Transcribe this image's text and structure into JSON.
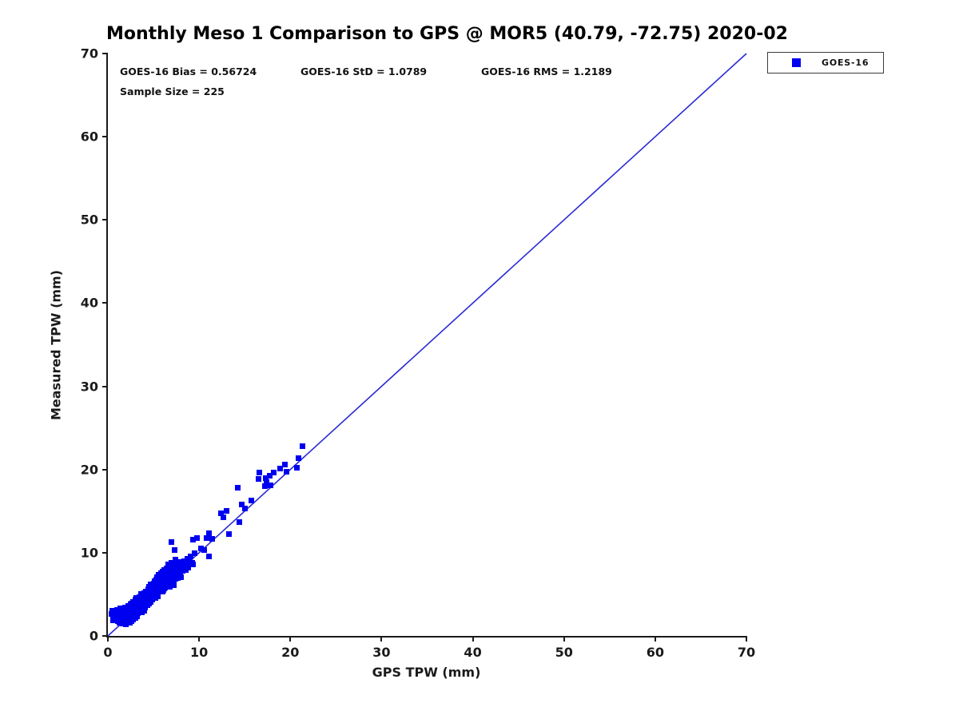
{
  "title": "Monthly Meso 1 Comparison to GPS @ MOR5 (40.79, -72.75) 2020-02",
  "stats": {
    "bias": "GOES-16 Bias = 0.56724",
    "std": "GOES-16 StD = 1.0789",
    "rms": "GOES-16 RMS = 1.2189",
    "sample_size": "Sample Size = 225"
  },
  "legend": {
    "entries": [
      {
        "label": "GOES-16",
        "marker_color": "#0000f0",
        "marker": "square"
      }
    ]
  },
  "colors": {
    "marker": "#0000f0",
    "reference_line": "#2a2ad4",
    "axis": "#1a1a1a",
    "background": "#ffffff"
  },
  "chart_data": {
    "type": "scatter",
    "title": "Monthly Meso 1 Comparison to GPS @ MOR5 (40.79, -72.75) 2020-02",
    "xlabel": "GPS TPW (mm)",
    "ylabel": "Measured TPW (mm)",
    "xlim": [
      0,
      70
    ],
    "ylim": [
      0,
      70
    ],
    "xticks": [
      0,
      10,
      20,
      30,
      40,
      50,
      60,
      70
    ],
    "yticks": [
      0,
      10,
      20,
      30,
      40,
      50,
      60,
      70
    ],
    "grid": false,
    "legend_position": "outside-top-right",
    "annotations": [
      "GOES-16 Bias = 0.56724",
      "GOES-16 StD = 1.0789",
      "GOES-16 RMS = 1.2189",
      "Sample Size = 225"
    ],
    "reference_line": {
      "meaning": "1:1 line",
      "from": [
        0,
        0
      ],
      "to": [
        70,
        70
      ]
    },
    "series": [
      {
        "name": "GOES-16",
        "marker": "square",
        "color": "#0000f0",
        "sample_size": 225,
        "points": [
          [
            0.4,
            2.6
          ],
          [
            0.5,
            3.0
          ],
          [
            0.6,
            1.9
          ],
          [
            0.6,
            2.3
          ],
          [
            0.8,
            2.4
          ],
          [
            0.9,
            2.0
          ],
          [
            1.0,
            2.6
          ],
          [
            1.0,
            3.1
          ],
          [
            1.1,
            1.8
          ],
          [
            1.2,
            2.2
          ],
          [
            1.2,
            2.9
          ],
          [
            1.3,
            1.6
          ],
          [
            1.4,
            2.5
          ],
          [
            1.4,
            3.3
          ],
          [
            1.5,
            2.0
          ],
          [
            1.6,
            2.8
          ],
          [
            1.6,
            1.5
          ],
          [
            1.7,
            2.2
          ],
          [
            1.7,
            3.0
          ],
          [
            1.8,
            1.8
          ],
          [
            1.8,
            2.6
          ],
          [
            1.9,
            3.4
          ],
          [
            1.9,
            2.1
          ],
          [
            2.0,
            1.4
          ],
          [
            2.0,
            2.4
          ],
          [
            2.0,
            3.1
          ],
          [
            2.1,
            2.8
          ],
          [
            2.1,
            1.9
          ],
          [
            2.2,
            2.3
          ],
          [
            2.2,
            3.6
          ],
          [
            2.3,
            2.0
          ],
          [
            2.3,
            2.9
          ],
          [
            2.4,
            1.6
          ],
          [
            2.4,
            3.3
          ],
          [
            2.5,
            2.2
          ],
          [
            2.5,
            3.0
          ],
          [
            2.5,
            3.8
          ],
          [
            2.6,
            2.6
          ],
          [
            2.6,
            1.8
          ],
          [
            2.7,
            3.4
          ],
          [
            2.7,
            2.3
          ],
          [
            2.8,
            4.1
          ],
          [
            2.8,
            2.9
          ],
          [
            2.8,
            2.0
          ],
          [
            2.9,
            3.2
          ],
          [
            2.9,
            2.5
          ],
          [
            3.0,
            3.8
          ],
          [
            3.0,
            2.2
          ],
          [
            3.0,
            4.4
          ],
          [
            3.1,
            2.8
          ],
          [
            3.1,
            3.5
          ],
          [
            3.2,
            2.4
          ],
          [
            3.2,
            4.0
          ],
          [
            3.2,
            3.1
          ],
          [
            3.3,
            3.6
          ],
          [
            3.3,
            2.7
          ],
          [
            3.4,
            4.2
          ],
          [
            3.4,
            3.1
          ],
          [
            3.5,
            4.7
          ],
          [
            3.5,
            2.9
          ],
          [
            3.5,
            3.9
          ],
          [
            3.6,
            3.3
          ],
          [
            3.6,
            4.4
          ],
          [
            3.7,
            2.8
          ],
          [
            3.7,
            3.7
          ],
          [
            3.8,
            4.9
          ],
          [
            3.8,
            3.2
          ],
          [
            3.8,
            4.1
          ],
          [
            3.9,
            3.5
          ],
          [
            3.9,
            4.5
          ],
          [
            4.0,
            3.0
          ],
          [
            4.0,
            5.1
          ],
          [
            4.0,
            4.0
          ],
          [
            3.6,
            5.0
          ],
          [
            4.1,
            4.4
          ],
          [
            4.1,
            3.4
          ],
          [
            4.2,
            5.3
          ],
          [
            4.2,
            4.0
          ],
          [
            4.3,
            4.8
          ],
          [
            4.3,
            3.7
          ],
          [
            4.4,
            5.6
          ],
          [
            4.4,
            4.3
          ],
          [
            4.5,
            3.9
          ],
          [
            4.5,
            5.0
          ],
          [
            4.6,
            4.6
          ],
          [
            4.6,
            5.8
          ],
          [
            4.7,
            4.1
          ],
          [
            4.7,
            5.3
          ],
          [
            4.8,
            4.8
          ],
          [
            4.8,
            6.0
          ],
          [
            4.2,
            4.6
          ],
          [
            4.5,
            5.9
          ],
          [
            4.7,
            6.2
          ],
          [
            4.4,
            5.1
          ],
          [
            4.9,
            5.5
          ],
          [
            4.9,
            4.4
          ],
          [
            5.0,
            6.3
          ],
          [
            5.0,
            5.0
          ],
          [
            5.0,
            5.8
          ],
          [
            5.1,
            4.7
          ],
          [
            5.1,
            6.6
          ],
          [
            5.2,
            5.3
          ],
          [
            5.2,
            6.0
          ],
          [
            5.3,
            4.9
          ],
          [
            5.3,
            6.8
          ],
          [
            5.3,
            5.6
          ],
          [
            5.4,
            5.1
          ],
          [
            5.4,
            6.3
          ],
          [
            5.5,
            5.9
          ],
          [
            5.5,
            7.0
          ],
          [
            5.5,
            4.8
          ],
          [
            5.6,
            5.4
          ],
          [
            5.6,
            6.6
          ],
          [
            5.6,
            7.3
          ],
          [
            5.2,
            4.6
          ],
          [
            5.4,
            7.1
          ],
          [
            5.7,
            6.0
          ],
          [
            5.7,
            6.9
          ],
          [
            5.8,
            5.5
          ],
          [
            5.8,
            6.4
          ],
          [
            5.8,
            7.5
          ],
          [
            5.9,
            5.9
          ],
          [
            5.9,
            7.1
          ],
          [
            6.0,
            6.6
          ],
          [
            6.0,
            5.3
          ],
          [
            6.0,
            7.7
          ],
          [
            6.1,
            6.2
          ],
          [
            6.1,
            7.3
          ],
          [
            6.2,
            5.7
          ],
          [
            6.2,
            6.8
          ],
          [
            6.2,
            7.9
          ],
          [
            6.3,
            6.4
          ],
          [
            6.3,
            7.5
          ],
          [
            6.4,
            6.0
          ],
          [
            6.4,
            7.0
          ],
          [
            6.4,
            8.1
          ],
          [
            6.1,
            5.5
          ],
          [
            6.3,
            5.8
          ],
          [
            6.5,
            6.7
          ],
          [
            6.5,
            7.7
          ],
          [
            6.6,
            6.2
          ],
          [
            6.6,
            7.3
          ],
          [
            6.7,
            8.3
          ],
          [
            6.7,
            6.9
          ],
          [
            6.8,
            7.5
          ],
          [
            6.8,
            6.4
          ],
          [
            6.9,
            8.0
          ],
          [
            6.9,
            7.1
          ],
          [
            7.0,
            6.6
          ],
          [
            7.0,
            7.7
          ],
          [
            7.1,
            8.5
          ],
          [
            7.1,
            7.2
          ],
          [
            7.2,
            6.8
          ],
          [
            7.2,
            7.9
          ],
          [
            6.6,
            8.6
          ],
          [
            7.0,
            8.8
          ],
          [
            6.8,
            5.9
          ],
          [
            7.2,
            6.1
          ],
          [
            7.3,
            7.4
          ],
          [
            7.3,
            8.2
          ],
          [
            7.4,
            6.9
          ],
          [
            7.4,
            7.8
          ],
          [
            7.5,
            8.7
          ],
          [
            7.5,
            7.2
          ],
          [
            7.6,
            7.6
          ],
          [
            7.6,
            8.4
          ],
          [
            7.7,
            7.0
          ],
          [
            7.8,
            8.0
          ],
          [
            7.8,
            8.9
          ],
          [
            7.9,
            7.5
          ],
          [
            8.0,
            8.2
          ],
          [
            8.0,
            7.1
          ],
          [
            8.1,
            8.6
          ],
          [
            8.2,
            7.8
          ],
          [
            8.3,
            8.4
          ],
          [
            8.4,
            9.0
          ],
          [
            8.5,
            7.9
          ],
          [
            8.6,
            8.7
          ],
          [
            8.7,
            9.3
          ],
          [
            8.8,
            8.2
          ],
          [
            9.0,
            9.0
          ],
          [
            9.1,
            9.6
          ],
          [
            9.2,
            8.8
          ],
          [
            9.5,
            9.9
          ],
          [
            2.6,
            3.9
          ],
          [
            3.1,
            4.6
          ],
          [
            1.9,
            1.5
          ],
          [
            5.9,
            6.8
          ],
          [
            6.6,
            7.0
          ],
          [
            4.9,
            6.1
          ],
          [
            7.0,
            11.3
          ],
          [
            7.3,
            10.3
          ],
          [
            7.4,
            9.2
          ],
          [
            9.3,
            8.6
          ],
          [
            9.3,
            11.6
          ],
          [
            9.8,
            11.8
          ],
          [
            10.2,
            10.5
          ],
          [
            10.6,
            10.3
          ],
          [
            11.1,
            9.6
          ],
          [
            11.1,
            12.3
          ],
          [
            10.8,
            11.8
          ],
          [
            11.4,
            11.7
          ],
          [
            13.3,
            12.2
          ],
          [
            12.4,
            14.7
          ],
          [
            12.7,
            14.3
          ],
          [
            13.0,
            15.0
          ],
          [
            14.4,
            13.7
          ],
          [
            14.7,
            15.8
          ],
          [
            15.0,
            15.3
          ],
          [
            15.7,
            16.3
          ],
          [
            14.2,
            17.8
          ],
          [
            16.5,
            18.9
          ],
          [
            17.2,
            18.0
          ],
          [
            17.4,
            18.5
          ],
          [
            17.8,
            18.1
          ],
          [
            16.6,
            19.6
          ],
          [
            17.3,
            19.0
          ],
          [
            17.7,
            19.3
          ],
          [
            18.2,
            19.6
          ],
          [
            19.6,
            19.7
          ],
          [
            18.9,
            20.1
          ],
          [
            19.4,
            20.6
          ],
          [
            20.7,
            20.2
          ],
          [
            20.9,
            21.4
          ],
          [
            21.3,
            22.8
          ]
        ]
      }
    ]
  }
}
